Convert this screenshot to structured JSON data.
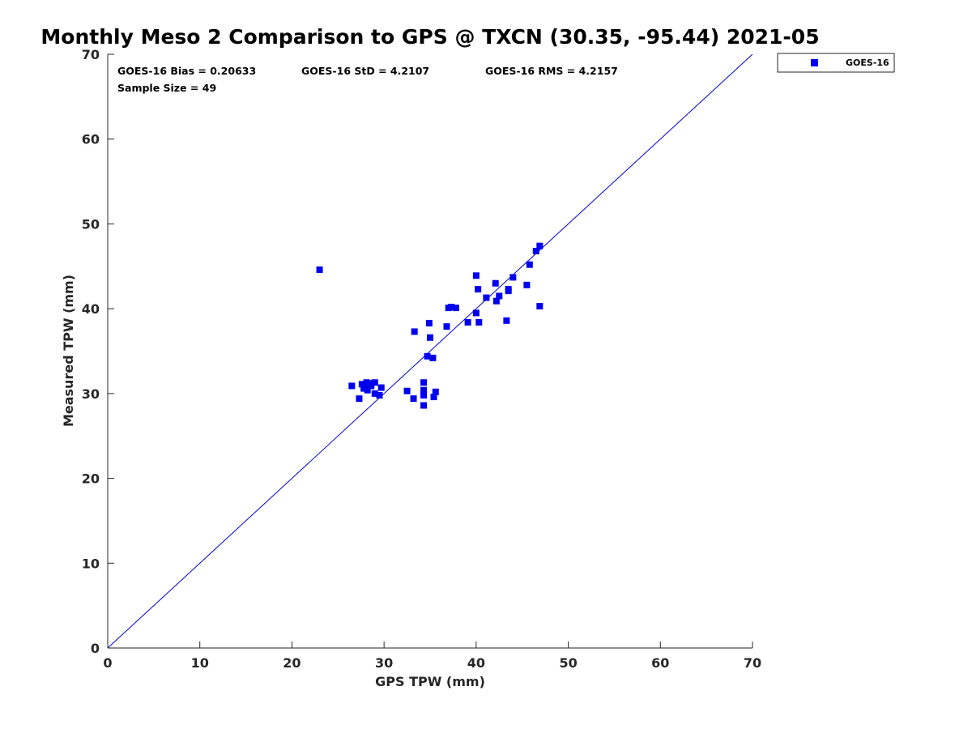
{
  "chart_data": {
    "type": "scatter",
    "title": "Monthly Meso 2 Comparison to GPS @ TXCN (30.35, -95.44) 2021-05",
    "xlabel": "GPS TPW (mm)",
    "ylabel": "Measured TPW (mm)",
    "xlim": [
      0,
      70
    ],
    "ylim": [
      0,
      70
    ],
    "xticks": [
      0,
      10,
      20,
      30,
      40,
      50,
      60,
      70
    ],
    "yticks": [
      0,
      10,
      20,
      30,
      40,
      50,
      60,
      70
    ],
    "grid": false,
    "legend_position": "top-right-outside",
    "reference_line": {
      "type": "1:1",
      "from": [
        0,
        0
      ],
      "to": [
        70,
        70
      ],
      "color": "#0000cc"
    },
    "stats": {
      "bias": "GOES-16 Bias = 0.20633",
      "std": "GOES-16 StD = 4.2107",
      "rms": "GOES-16 RMS = 4.2157",
      "sample": "Sample Size = 49"
    },
    "series": [
      {
        "name": "GOES-16",
        "color": "#0000ee",
        "marker": "square",
        "points": [
          [
            23.0,
            44.6
          ],
          [
            26.5,
            30.9
          ],
          [
            27.3,
            29.4
          ],
          [
            27.6,
            31.1
          ],
          [
            27.8,
            30.6
          ],
          [
            28.0,
            30.9
          ],
          [
            28.1,
            31.3
          ],
          [
            28.2,
            30.4
          ],
          [
            28.4,
            31.2
          ],
          [
            28.6,
            30.9
          ],
          [
            29.0,
            31.3
          ],
          [
            29.0,
            30.0
          ],
          [
            29.5,
            29.8
          ],
          [
            29.7,
            30.7
          ],
          [
            32.5,
            30.3
          ],
          [
            33.2,
            29.4
          ],
          [
            33.3,
            37.3
          ],
          [
            34.3,
            31.3
          ],
          [
            34.3,
            30.4
          ],
          [
            34.3,
            29.8
          ],
          [
            34.3,
            28.6
          ],
          [
            34.7,
            34.4
          ],
          [
            34.9,
            38.3
          ],
          [
            35.0,
            36.6
          ],
          [
            35.3,
            34.2
          ],
          [
            35.4,
            29.6
          ],
          [
            35.6,
            30.2
          ],
          [
            36.8,
            37.9
          ],
          [
            37.0,
            40.1
          ],
          [
            37.3,
            40.2
          ],
          [
            37.8,
            40.1
          ],
          [
            39.1,
            38.4
          ],
          [
            40.0,
            43.9
          ],
          [
            40.0,
            39.5
          ],
          [
            40.2,
            42.3
          ],
          [
            40.3,
            38.4
          ],
          [
            41.1,
            41.3
          ],
          [
            42.1,
            43.0
          ],
          [
            42.2,
            40.9
          ],
          [
            42.5,
            41.5
          ],
          [
            43.3,
            38.6
          ],
          [
            43.5,
            42.1
          ],
          [
            43.5,
            42.3
          ],
          [
            44.0,
            43.7
          ],
          [
            45.5,
            42.8
          ],
          [
            45.8,
            45.2
          ],
          [
            46.5,
            46.8
          ],
          [
            46.9,
            47.4
          ],
          [
            46.9,
            40.3
          ]
        ]
      }
    ]
  }
}
